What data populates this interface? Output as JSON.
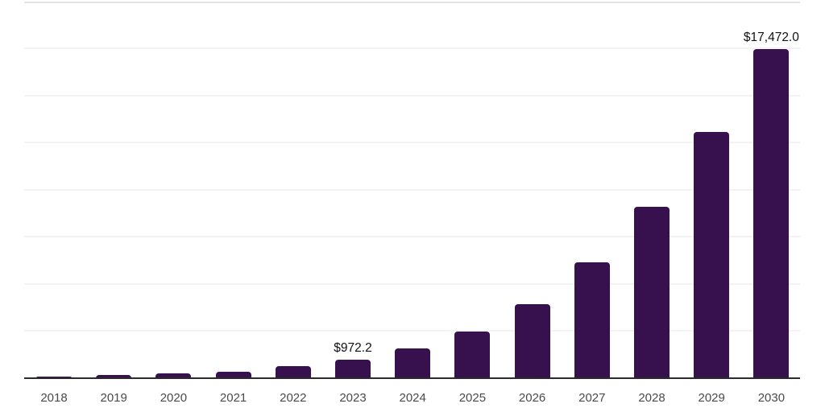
{
  "chart_data": {
    "type": "bar",
    "title": "",
    "xlabel": "",
    "ylabel": "",
    "categories": [
      "2018",
      "2019",
      "2020",
      "2021",
      "2022",
      "2023",
      "2024",
      "2025",
      "2026",
      "2027",
      "2028",
      "2029",
      "2030"
    ],
    "values": [
      105,
      170,
      270,
      360,
      625,
      972.2,
      1560,
      2470,
      3930,
      6135,
      9115,
      13065,
      17472
    ],
    "value_labels": [
      "",
      "",
      "",
      "",
      "",
      "$972.2",
      "",
      "",
      "",
      "",
      "",
      "",
      "$17,472.0"
    ],
    "gridline_values": [
      2500,
      5000,
      7500,
      10000,
      12500,
      15000,
      17500
    ],
    "ylim": [
      0,
      17472
    ],
    "grid": "horizontal",
    "y_axis_tick_labels_visible": false,
    "legend": "none",
    "colors": {
      "bar": "#36114e",
      "axis_line": "#2b2b2b",
      "gridline": "#f3f3f3",
      "top_border": "#e3e3e3",
      "value_label_text": "#111111",
      "tick_label_text": "#4a4a4a",
      "background": "#ffffff"
    }
  }
}
